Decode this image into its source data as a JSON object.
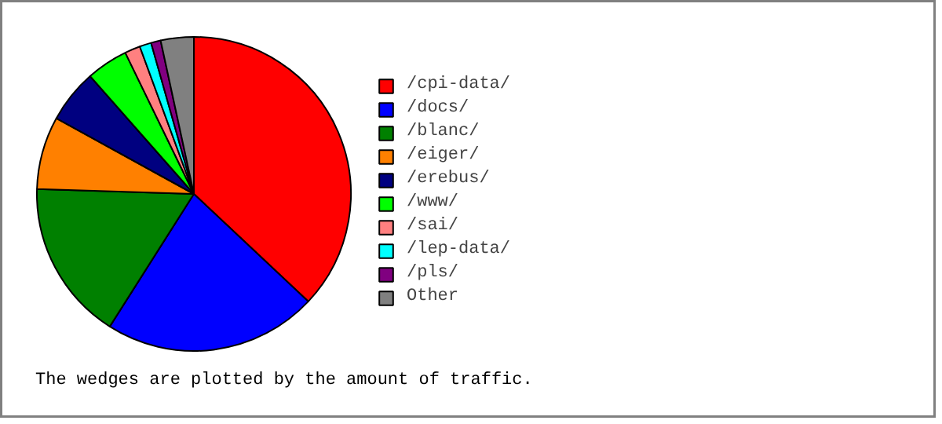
{
  "chart_data": {
    "type": "pie",
    "categories": [
      "/cpi-data/",
      "/docs/",
      "/blanc/",
      "/eiger/",
      "/erebus/",
      "/www/",
      "/sai/",
      "/lep-data/",
      "/pls/",
      "Other"
    ],
    "values": [
      37,
      22,
      16.5,
      7.5,
      5.5,
      4.3,
      1.6,
      1.2,
      1.0,
      3.4
    ],
    "colors": [
      "#ff0000",
      "#0000ff",
      "#008000",
      "#ff8000",
      "#000080",
      "#00ff00",
      "#ff8080",
      "#00ffff",
      "#800080",
      "#808080"
    ],
    "legend": "right",
    "annotations": [
      "The wedges are plotted by the amount of traffic."
    ]
  }
}
